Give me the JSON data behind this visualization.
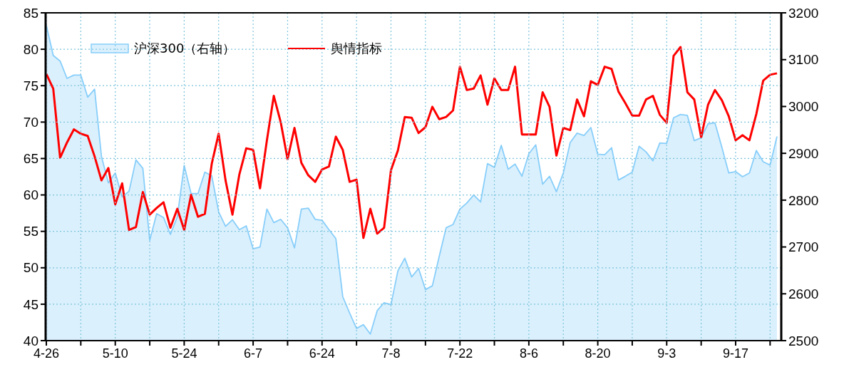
{
  "chart_data": {
    "type": "line",
    "categories": [
      "4-26",
      null,
      null,
      null,
      null,
      null,
      null,
      null,
      null,
      null,
      "5-10",
      null,
      null,
      null,
      null,
      null,
      null,
      null,
      null,
      null,
      "5-24",
      null,
      null,
      null,
      null,
      null,
      null,
      null,
      null,
      null,
      "6-7",
      null,
      null,
      null,
      null,
      null,
      null,
      null,
      null,
      null,
      "6-24",
      null,
      null,
      null,
      null,
      null,
      null,
      null,
      null,
      null,
      "7-8",
      null,
      null,
      null,
      null,
      null,
      null,
      null,
      null,
      null,
      "7-22",
      null,
      null,
      null,
      null,
      null,
      null,
      null,
      null,
      null,
      "8-6",
      null,
      null,
      null,
      null,
      null,
      null,
      null,
      null,
      null,
      "8-20",
      null,
      null,
      null,
      null,
      null,
      null,
      null,
      null,
      null,
      "9-3",
      null,
      null,
      null,
      null,
      null,
      null,
      null,
      null,
      null,
      "9-17",
      null,
      null,
      null,
      null,
      null,
      null
    ],
    "series": [
      {
        "name": "沪深300（右轴）",
        "type": "area",
        "axis": "y2",
        "color": "#87cefa",
        "values": [
          3173,
          3109,
          3097,
          3060,
          3067,
          3067,
          3020,
          3037,
          2893,
          2837,
          2858,
          2807,
          2819,
          2886,
          2868,
          2714,
          2771,
          2763,
          2727,
          2764,
          2874,
          2814,
          2814,
          2860,
          2852,
          2775,
          2744,
          2758,
          2737,
          2745,
          2696,
          2700,
          2781,
          2752,
          2759,
          2741,
          2698,
          2781,
          2783,
          2759,
          2757,
          2737,
          2718,
          2594,
          2559,
          2526,
          2534,
          2514,
          2564,
          2581,
          2577,
          2649,
          2676,
          2636,
          2654,
          2609,
          2617,
          2680,
          2741,
          2748,
          2781,
          2794,
          2811,
          2796,
          2878,
          2870,
          2917,
          2866,
          2877,
          2851,
          2899,
          2918,
          2834,
          2851,
          2818,
          2858,
          2923,
          2943,
          2938,
          2955,
          2898,
          2897,
          2912,
          2843,
          2851,
          2860,
          2915,
          2903,
          2884,
          2922,
          2921,
          2976,
          2983,
          2981,
          2927,
          2933,
          2963,
          2965,
          2913,
          2858,
          2861,
          2850,
          2858,
          2906,
          2882,
          2875,
          2936
        ]
      },
      {
        "name": "舆情指标",
        "color": "#ff0000",
        "values": [
          76.6,
          74.6,
          65.1,
          67.2,
          69.0,
          68.4,
          68.1,
          65.3,
          62.0,
          63.7,
          58.7,
          61.6,
          55.2,
          55.6,
          60.4,
          57.3,
          58.2,
          59.0,
          55.5,
          58.1,
          55.2,
          60.0,
          57.0,
          57.4,
          64.3,
          68.4,
          62.0,
          57.3,
          62.8,
          66.4,
          66.2,
          60.9,
          67.5,
          73.6,
          70.0,
          64.9,
          69.2,
          64.4,
          62.7,
          61.8,
          63.5,
          63.9,
          68.0,
          66.2,
          61.8,
          62.1,
          54.1,
          58.1,
          54.7,
          55.5,
          63.4,
          66.1,
          70.7,
          70.6,
          68.5,
          69.3,
          72.1,
          70.4,
          70.7,
          71.6,
          77.6,
          74.4,
          74.6,
          76.4,
          72.4,
          76.0,
          74.4,
          74.4,
          77.6,
          68.3,
          68.3,
          68.3,
          74.1,
          72.1,
          65.4,
          69.2,
          68.9,
          73.1,
          70.8,
          75.6,
          75.1,
          77.6,
          77.3,
          74.2,
          72.6,
          70.9,
          70.9,
          73.1,
          73.6,
          71.0,
          69.9,
          79.1,
          80.3,
          74.1,
          73.1,
          67.9,
          72.4,
          74.4,
          73.0,
          70.8,
          67.5,
          68.2,
          67.5,
          71.1,
          75.7,
          76.5,
          76.7
        ]
      }
    ],
    "ylim": [
      40,
      85
    ],
    "yticks": [
      40,
      45,
      50,
      55,
      60,
      65,
      70,
      75,
      80,
      85
    ],
    "y2lim": [
      2500,
      3200
    ],
    "y2ticks": [
      2500,
      2600,
      2700,
      2800,
      2900,
      3000,
      3100,
      3200
    ],
    "grid": true,
    "legend": "top left"
  }
}
